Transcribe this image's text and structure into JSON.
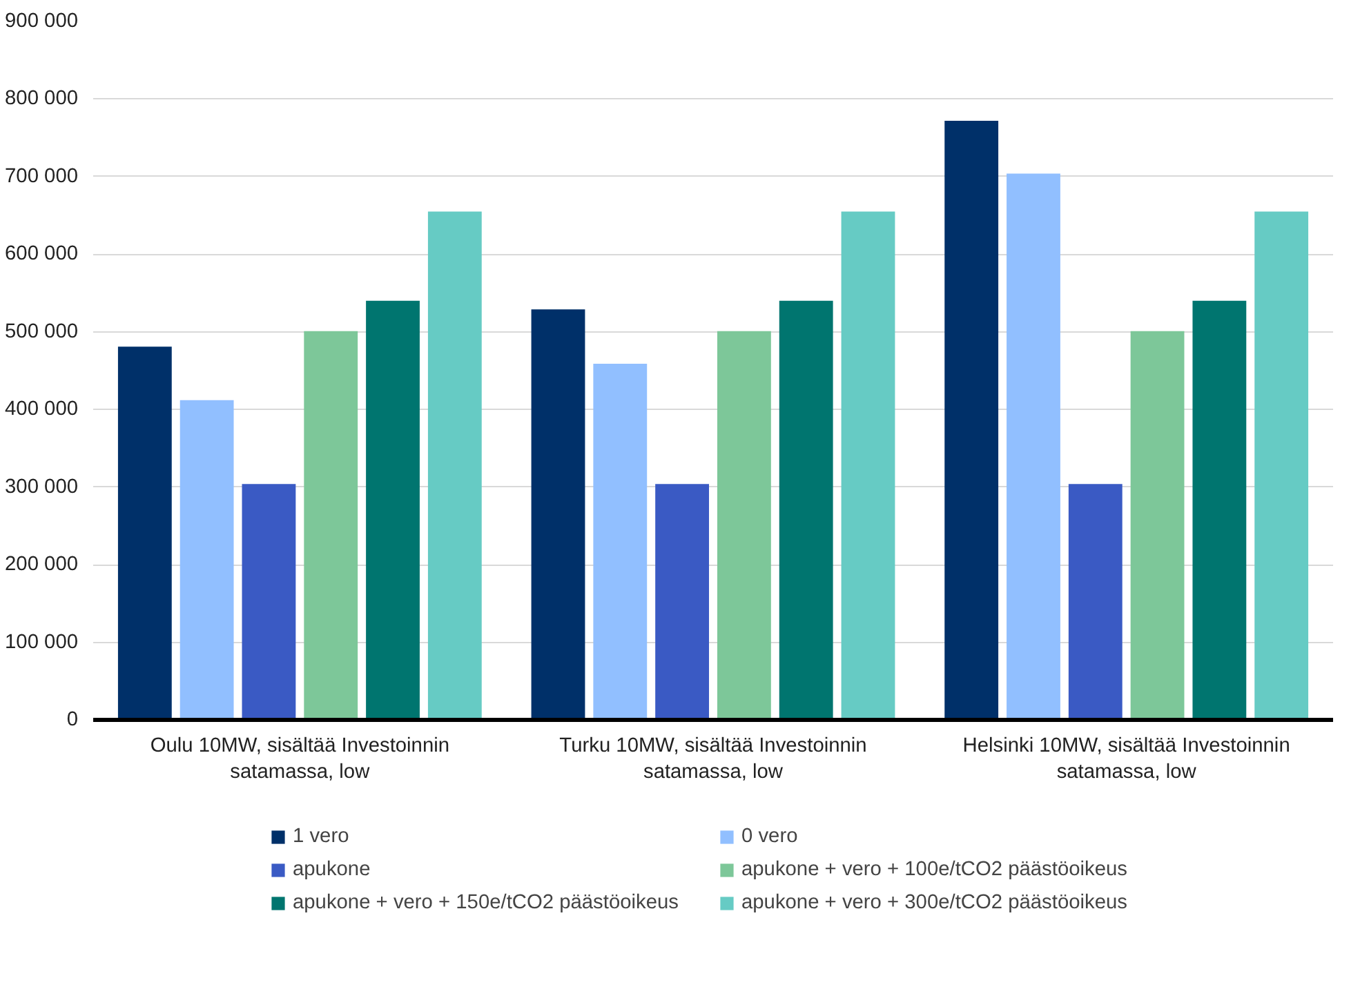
{
  "chart_data": {
    "type": "bar",
    "categories": [
      "Oulu 10MW, sisältää Investoinnin satamassa, low",
      "Turku 10MW, sisältää Investoinnin satamassa, low",
      "Helsinki 10MW, sisältää Investoinnin satamassa, low"
    ],
    "series": [
      {
        "name": "1 vero",
        "color": "#003069",
        "values": [
          481000,
          529000,
          772000
        ]
      },
      {
        "name": "0 vero",
        "color": "#91bfff",
        "values": [
          412000,
          459000,
          704000
        ]
      },
      {
        "name": "apukone",
        "color": "#3a5ac4",
        "values": [
          304000,
          304000,
          304000
        ]
      },
      {
        "name": "apukone + vero + 100e/tCO2 päästöoikeus",
        "color": "#7dc799",
        "values": [
          501000,
          501000,
          501000
        ]
      },
      {
        "name": "apukone + vero + 150e/tCO2 päästöoikeus",
        "color": "#00756f",
        "values": [
          540000,
          540000,
          540000
        ]
      },
      {
        "name": "apukone + vero + 300e/tCO2 päästöoikeus",
        "color": "#66cbc4",
        "values": [
          655000,
          655000,
          655000
        ]
      }
    ],
    "ylim": [
      0,
      900000
    ],
    "yticks": [
      0,
      {
        "value": 100000,
        "label": "100 000"
      },
      {
        "value": 200000,
        "label": "200 000"
      },
      {
        "value": 300000,
        "label": "300 000"
      },
      {
        "value": 400000,
        "label": "400 000"
      },
      {
        "value": 500000,
        "label": "500 000"
      },
      {
        "value": 600000,
        "label": "600 000"
      },
      {
        "value": 700000,
        "label": "700 000"
      },
      {
        "value": 800000,
        "label": "800 000"
      },
      {
        "value": 900000,
        "label": "900 000"
      }
    ],
    "grid": "y",
    "legend": "bottom"
  }
}
